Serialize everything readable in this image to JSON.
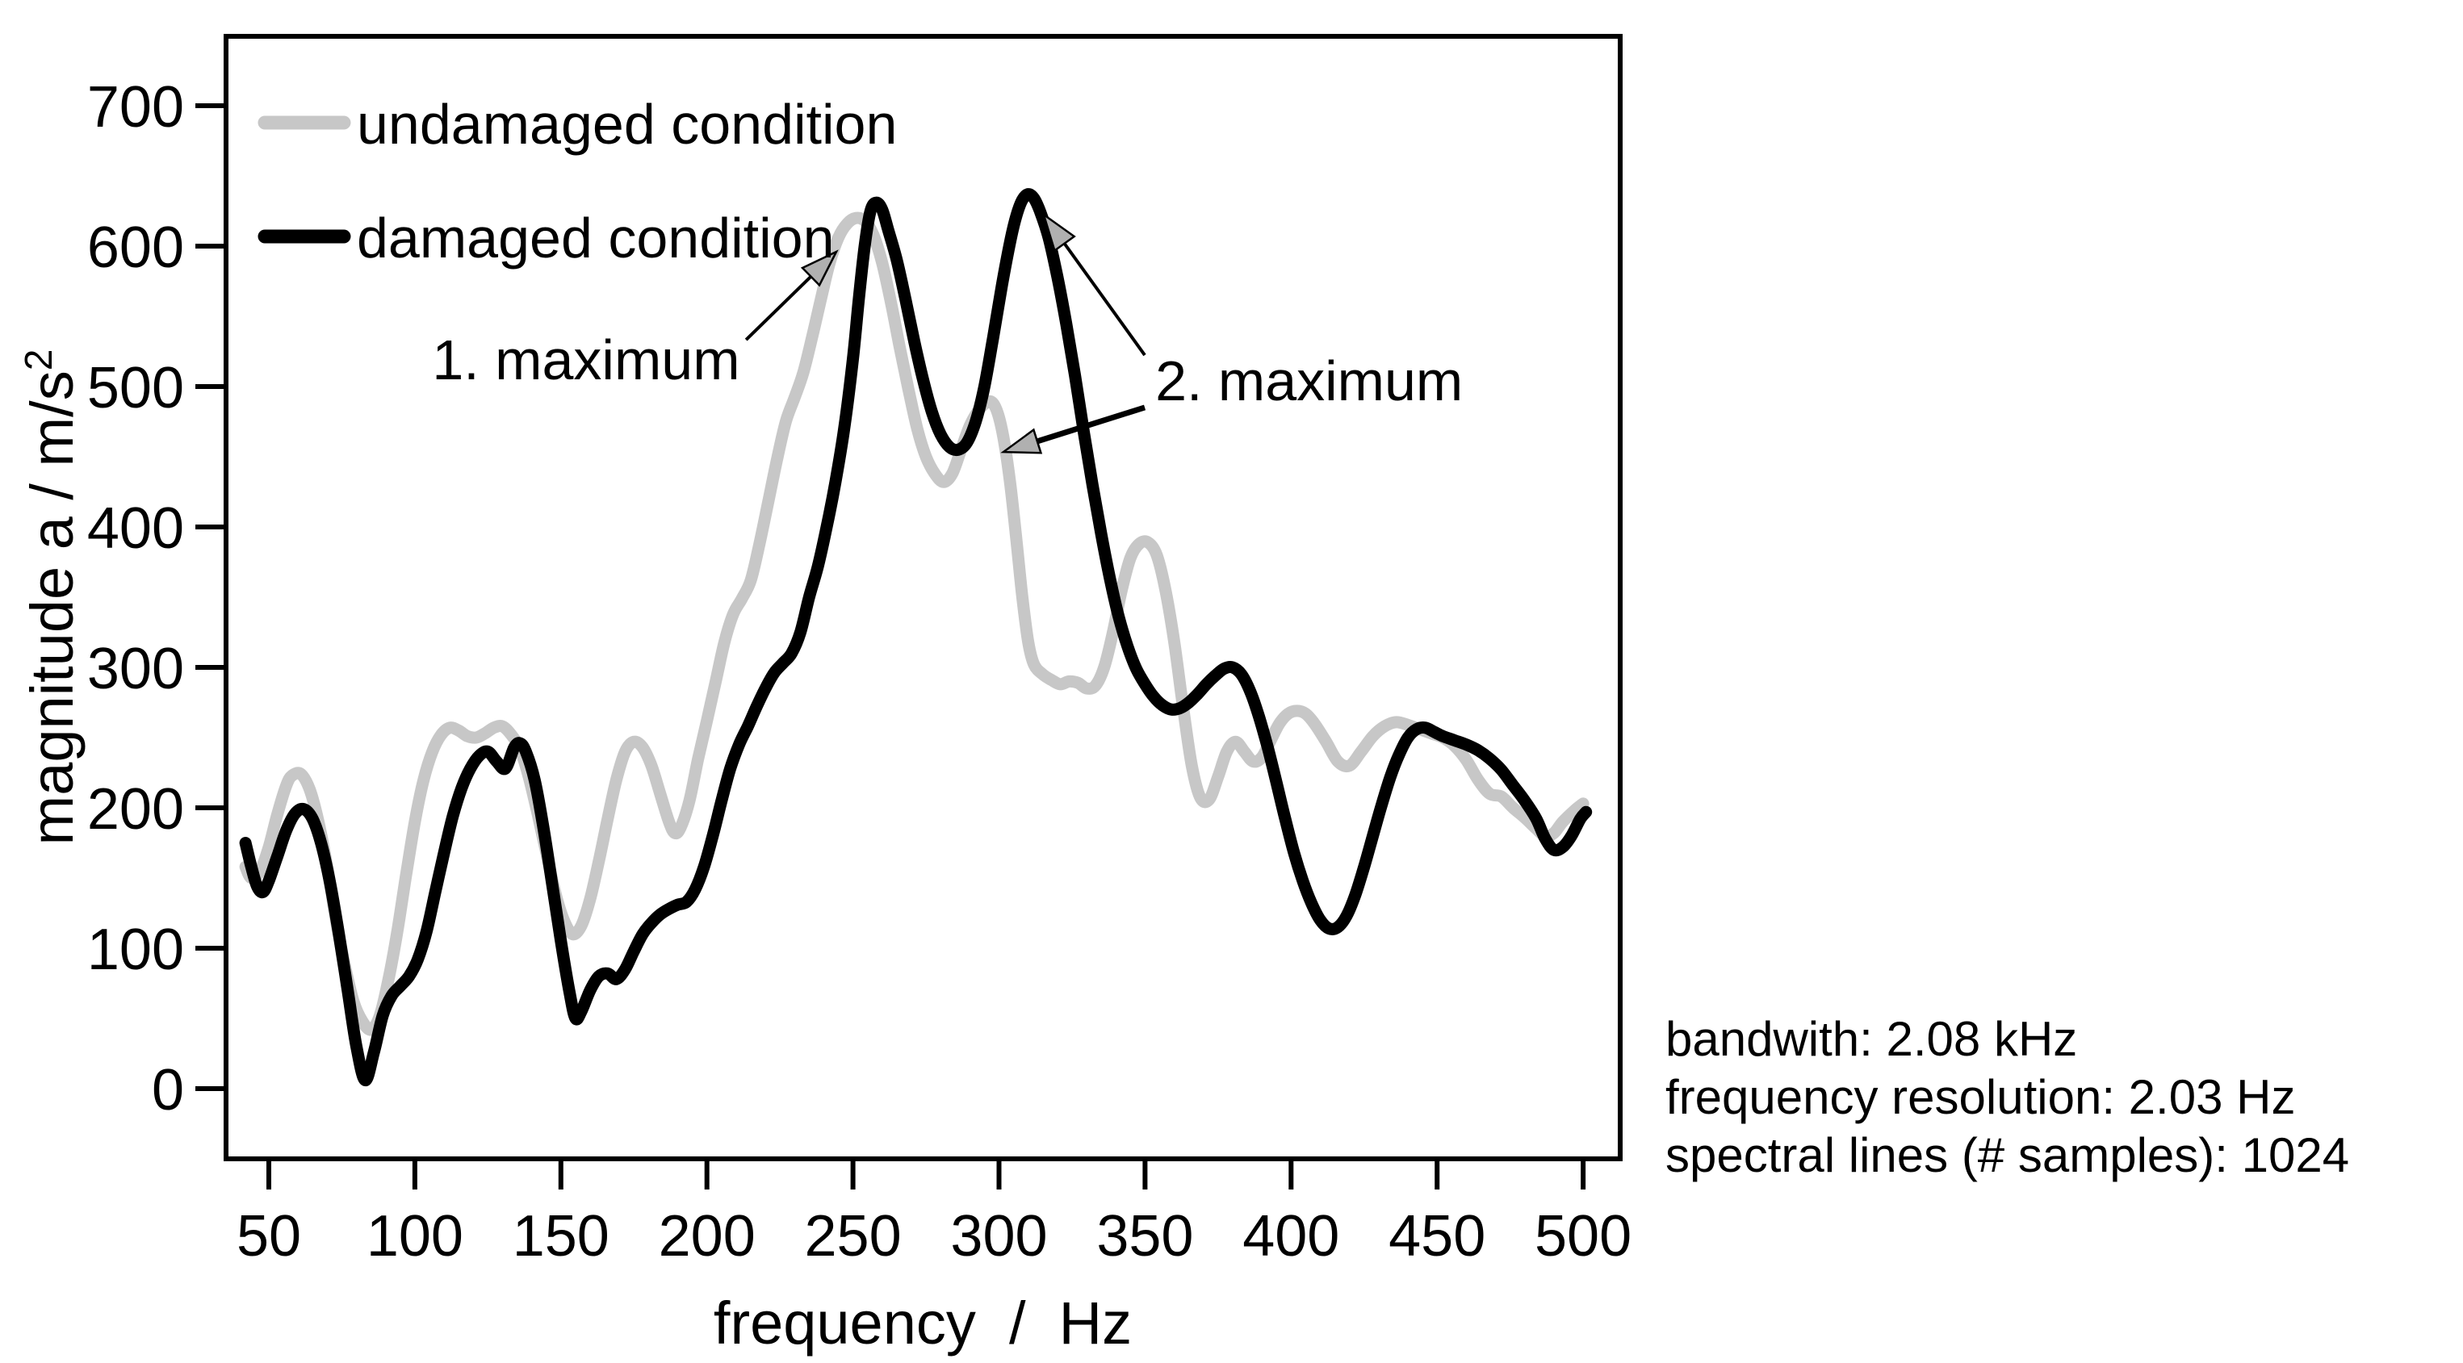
{
  "chart_data": {
    "type": "line",
    "title": "",
    "xlabel": "frequency  /  Hz",
    "ylabel_main": "magnitude a / m/s",
    "ylabel_sup": "2",
    "xlim": [
      35,
      513
    ],
    "ylim": [
      -50,
      750
    ],
    "x_ticks": [
      50,
      100,
      150,
      200,
      250,
      300,
      350,
      400,
      450,
      500
    ],
    "y_ticks": [
      0,
      100,
      200,
      300,
      400,
      500,
      600,
      700
    ],
    "grid": false,
    "legend_position": "top-left-inside",
    "series": [
      {
        "name": "undamaged condition",
        "color": "#c7c7c7",
        "points": [
          [
            42,
            158
          ],
          [
            44,
            150
          ],
          [
            47,
            155
          ],
          [
            50,
            172
          ],
          [
            53,
            196
          ],
          [
            56,
            216
          ],
          [
            58,
            223
          ],
          [
            61,
            224
          ],
          [
            64,
            213
          ],
          [
            67,
            190
          ],
          [
            70,
            158
          ],
          [
            73,
            120
          ],
          [
            76,
            88
          ],
          [
            79,
            62
          ],
          [
            82,
            48
          ],
          [
            85,
            42
          ],
          [
            88,
            52
          ],
          [
            91,
            78
          ],
          [
            94,
            112
          ],
          [
            97,
            152
          ],
          [
            100,
            190
          ],
          [
            103,
            220
          ],
          [
            106,
            240
          ],
          [
            109,
            252
          ],
          [
            112,
            257
          ],
          [
            115,
            255
          ],
          [
            118,
            251
          ],
          [
            121,
            250
          ],
          [
            124,
            253
          ],
          [
            127,
            257
          ],
          [
            130,
            258
          ],
          [
            133,
            252
          ],
          [
            136,
            242
          ],
          [
            139,
            222
          ],
          [
            142,
            196
          ],
          [
            145,
            168
          ],
          [
            148,
            140
          ],
          [
            151,
            120
          ],
          [
            154,
            110
          ],
          [
            157,
            116
          ],
          [
            160,
            135
          ],
          [
            163,
            162
          ],
          [
            166,
            192
          ],
          [
            169,
            220
          ],
          [
            172,
            240
          ],
          [
            175,
            247
          ],
          [
            178,
            243
          ],
          [
            181,
            230
          ],
          [
            184,
            210
          ],
          [
            187,
            190
          ],
          [
            189,
            182
          ],
          [
            191,
            186
          ],
          [
            194,
            205
          ],
          [
            197,
            235
          ],
          [
            200,
            262
          ],
          [
            203,
            290
          ],
          [
            206,
            318
          ],
          [
            209,
            338
          ],
          [
            212,
            349
          ],
          [
            215,
            362
          ],
          [
            218,
            388
          ],
          [
            221,
            418
          ],
          [
            224,
            448
          ],
          [
            227,
            475
          ],
          [
            230,
            492
          ],
          [
            233,
            510
          ],
          [
            236,
            535
          ],
          [
            239,
            562
          ],
          [
            242,
            588
          ],
          [
            245,
            606
          ],
          [
            248,
            616
          ],
          [
            251,
            620
          ],
          [
            254,
            618
          ],
          [
            257,
            608
          ],
          [
            260,
            588
          ],
          [
            263,
            560
          ],
          [
            266,
            528
          ],
          [
            269,
            498
          ],
          [
            272,
            470
          ],
          [
            275,
            450
          ],
          [
            278,
            438
          ],
          [
            281,
            432
          ],
          [
            284,
            438
          ],
          [
            287,
            455
          ],
          [
            290,
            472
          ],
          [
            293,
            483
          ],
          [
            296,
            489
          ],
          [
            298,
            488
          ],
          [
            300,
            478
          ],
          [
            302,
            458
          ],
          [
            304,
            428
          ],
          [
            306,
            390
          ],
          [
            308,
            350
          ],
          [
            310,
            318
          ],
          [
            312,
            302
          ],
          [
            315,
            295
          ],
          [
            318,
            291
          ],
          [
            321,
            288
          ],
          [
            324,
            290
          ],
          [
            327,
            289
          ],
          [
            330,
            285
          ],
          [
            333,
            287
          ],
          [
            336,
            300
          ],
          [
            339,
            325
          ],
          [
            342,
            355
          ],
          [
            345,
            378
          ],
          [
            348,
            388
          ],
          [
            351,
            389
          ],
          [
            354,
            380
          ],
          [
            357,
            355
          ],
          [
            360,
            318
          ],
          [
            363,
            272
          ],
          [
            366,
            230
          ],
          [
            369,
            207
          ],
          [
            372,
            206
          ],
          [
            375,
            222
          ],
          [
            378,
            240
          ],
          [
            381,
            247
          ],
          [
            384,
            240
          ],
          [
            387,
            233
          ],
          [
            390,
            236
          ],
          [
            393,
            248
          ],
          [
            396,
            260
          ],
          [
            399,
            267
          ],
          [
            402,
            269
          ],
          [
            405,
            267
          ],
          [
            408,
            260
          ],
          [
            412,
            247
          ],
          [
            416,
            233
          ],
          [
            420,
            230
          ],
          [
            424,
            240
          ],
          [
            428,
            251
          ],
          [
            432,
            258
          ],
          [
            436,
            261
          ],
          [
            440,
            259
          ],
          [
            444,
            256
          ],
          [
            448,
            253
          ],
          [
            452,
            250
          ],
          [
            456,
            244
          ],
          [
            460,
            234
          ],
          [
            464,
            220
          ],
          [
            468,
            210
          ],
          [
            472,
            208
          ],
          [
            476,
            200
          ],
          [
            480,
            193
          ],
          [
            484,
            185
          ],
          [
            487,
            180
          ],
          [
            490,
            182
          ],
          [
            493,
            190
          ],
          [
            497,
            198
          ],
          [
            500,
            203
          ]
        ]
      },
      {
        "name": "damaged condition",
        "color": "#000000",
        "points": [
          [
            42,
            175
          ],
          [
            44,
            158
          ],
          [
            46,
            144
          ],
          [
            48,
            140
          ],
          [
            50,
            148
          ],
          [
            53,
            166
          ],
          [
            56,
            184
          ],
          [
            59,
            196
          ],
          [
            62,
            199
          ],
          [
            65,
            192
          ],
          [
            68,
            174
          ],
          [
            71,
            146
          ],
          [
            74,
            110
          ],
          [
            77,
            70
          ],
          [
            80,
            30
          ],
          [
            83,
            6
          ],
          [
            86,
            26
          ],
          [
            89,
            52
          ],
          [
            92,
            66
          ],
          [
            95,
            73
          ],
          [
            98,
            80
          ],
          [
            101,
            92
          ],
          [
            104,
            112
          ],
          [
            107,
            140
          ],
          [
            110,
            168
          ],
          [
            113,
            194
          ],
          [
            116,
            214
          ],
          [
            119,
            228
          ],
          [
            122,
            237
          ],
          [
            125,
            240
          ],
          [
            128,
            233
          ],
          [
            131,
            228
          ],
          [
            134,
            243
          ],
          [
            136,
            246
          ],
          [
            138,
            240
          ],
          [
            141,
            220
          ],
          [
            144,
            186
          ],
          [
            147,
            146
          ],
          [
            150,
            105
          ],
          [
            153,
            68
          ],
          [
            155,
            50
          ],
          [
            157,
            55
          ],
          [
            160,
            70
          ],
          [
            163,
            80
          ],
          [
            166,
            82
          ],
          [
            169,
            78
          ],
          [
            172,
            85
          ],
          [
            175,
            98
          ],
          [
            178,
            110
          ],
          [
            181,
            118
          ],
          [
            184,
            124
          ],
          [
            187,
            128
          ],
          [
            190,
            131
          ],
          [
            193,
            133
          ],
          [
            196,
            142
          ],
          [
            199,
            158
          ],
          [
            202,
            180
          ],
          [
            205,
            205
          ],
          [
            208,
            228
          ],
          [
            211,
            245
          ],
          [
            214,
            258
          ],
          [
            217,
            272
          ],
          [
            220,
            285
          ],
          [
            223,
            296
          ],
          [
            226,
            303
          ],
          [
            229,
            310
          ],
          [
            232,
            325
          ],
          [
            235,
            350
          ],
          [
            238,
            372
          ],
          [
            241,
            400
          ],
          [
            244,
            432
          ],
          [
            247,
            470
          ],
          [
            250,
            520
          ],
          [
            252,
            562
          ],
          [
            254,
            600
          ],
          [
            256,
            625
          ],
          [
            258,
            631
          ],
          [
            260,
            626
          ],
          [
            262,
            612
          ],
          [
            265,
            590
          ],
          [
            268,
            562
          ],
          [
            271,
            532
          ],
          [
            274,
            505
          ],
          [
            277,
            482
          ],
          [
            280,
            466
          ],
          [
            283,
            457
          ],
          [
            286,
            455
          ],
          [
            289,
            460
          ],
          [
            292,
            475
          ],
          [
            295,
            500
          ],
          [
            298,
            535
          ],
          [
            301,
            572
          ],
          [
            304,
            605
          ],
          [
            306,
            622
          ],
          [
            308,
            633
          ],
          [
            310,
            637
          ],
          [
            312,
            634
          ],
          [
            314,
            625
          ],
          [
            317,
            606
          ],
          [
            320,
            578
          ],
          [
            323,
            545
          ],
          [
            326,
            508
          ],
          [
            329,
            468
          ],
          [
            332,
            430
          ],
          [
            335,
            395
          ],
          [
            338,
            363
          ],
          [
            341,
            336
          ],
          [
            344,
            315
          ],
          [
            347,
            299
          ],
          [
            350,
            288
          ],
          [
            353,
            279
          ],
          [
            356,
            273
          ],
          [
            359,
            270
          ],
          [
            362,
            271
          ],
          [
            365,
            275
          ],
          [
            368,
            281
          ],
          [
            371,
            288
          ],
          [
            374,
            294
          ],
          [
            377,
            299
          ],
          [
            380,
            300
          ],
          [
            383,
            295
          ],
          [
            386,
            283
          ],
          [
            389,
            265
          ],
          [
            392,
            243
          ],
          [
            395,
            218
          ],
          [
            398,
            192
          ],
          [
            401,
            168
          ],
          [
            404,
            148
          ],
          [
            407,
            132
          ],
          [
            410,
            120
          ],
          [
            413,
            114
          ],
          [
            416,
            115
          ],
          [
            419,
            123
          ],
          [
            422,
            138
          ],
          [
            425,
            158
          ],
          [
            428,
            180
          ],
          [
            431,
            202
          ],
          [
            434,
            222
          ],
          [
            437,
            238
          ],
          [
            440,
            250
          ],
          [
            443,
            256
          ],
          [
            446,
            257
          ],
          [
            449,
            254
          ],
          [
            452,
            251
          ],
          [
            456,
            248
          ],
          [
            460,
            245
          ],
          [
            464,
            241
          ],
          [
            468,
            235
          ],
          [
            472,
            227
          ],
          [
            476,
            216
          ],
          [
            480,
            205
          ],
          [
            484,
            192
          ],
          [
            487,
            178
          ],
          [
            490,
            170
          ],
          [
            493,
            172
          ],
          [
            496,
            180
          ],
          [
            499,
            192
          ],
          [
            501,
            197
          ]
        ]
      }
    ],
    "annotations": [
      {
        "text": "1. maximum",
        "f": 158.6,
        "val": 505.2,
        "anchor": "middle",
        "arrows": [
          {
            "f1": 213.4,
            "v1": 533.3,
            "f2": 244.3,
            "v2": 596.0,
            "width": 4
          }
        ]
      },
      {
        "text": "2. maximum",
        "f": 353.5,
        "val": 490.2,
        "anchor": "start",
        "arrows": [
          {
            "f1": 349.9,
            "v1": 522.4,
            "f2": 315.3,
            "v2": 622.4,
            "width": 4
          },
          {
            "f1": 349.9,
            "v1": 485.1,
            "f2": 301.5,
            "v2": 453.4,
            "width": 7
          }
        ]
      }
    ],
    "arrowhead_color": "#b0b0b0"
  },
  "legend": {
    "items": [
      {
        "label": "undamaged condition",
        "color": "#c7c7c7"
      },
      {
        "label": "damaged condition",
        "color": "#000000"
      }
    ]
  },
  "side_info": {
    "lines": [
      "bandwith: 2.08 kHz",
      "frequency resolution: 2.03 Hz",
      "spectral lines (# samples): 1024"
    ]
  }
}
